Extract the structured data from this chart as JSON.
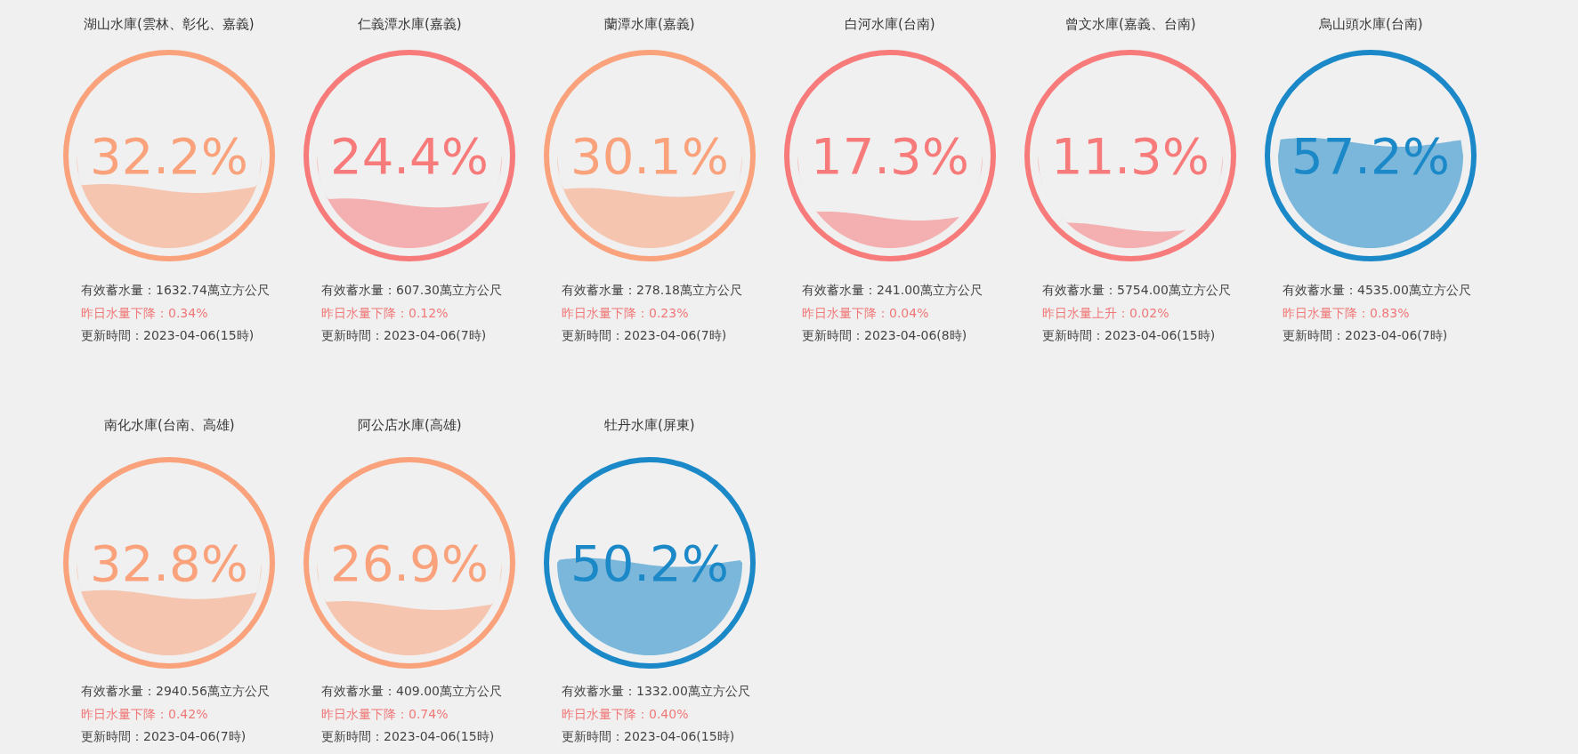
{
  "chart_data": [
    {
      "type": "other",
      "title": "湖山水庫(雲林、彰化、嘉義)",
      "values": [
        32.2
      ],
      "value_labels": [
        "32.2%"
      ],
      "color": "#f9a27c",
      "annotations": [
        "有效蓄水量：1632.74萬立方公尺",
        "昨日水量下降：0.34%",
        "更新時間：2023-04-06(15時)"
      ]
    },
    {
      "type": "other",
      "title": "仁義潭水庫(嘉義)",
      "values": [
        24.4
      ],
      "value_labels": [
        "24.4%"
      ],
      "color": "#f77b7b",
      "annotations": [
        "有效蓄水量：607.30萬立方公尺",
        "昨日水量下降：0.12%",
        "更新時間：2023-04-06(7時)"
      ]
    },
    {
      "type": "other",
      "title": "蘭潭水庫(嘉義)",
      "values": [
        30.1
      ],
      "value_labels": [
        "30.1%"
      ],
      "color": "#f9a27c",
      "annotations": [
        "有效蓄水量：278.18萬立方公尺",
        "昨日水量下降：0.23%",
        "更新時間：2023-04-06(7時)"
      ]
    },
    {
      "type": "other",
      "title": "白河水庫(台南)",
      "values": [
        17.3
      ],
      "value_labels": [
        "17.3%"
      ],
      "color": "#f77b7b",
      "annotations": [
        "有效蓄水量：241.00萬立方公尺",
        "昨日水量下降：0.04%",
        "更新時間：2023-04-06(8時)"
      ]
    },
    {
      "type": "other",
      "title": "曾文水庫(嘉義、台南)",
      "values": [
        11.3
      ],
      "value_labels": [
        "11.3%"
      ],
      "color": "#f77b7b",
      "annotations": [
        "有效蓄水量：5754.00萬立方公尺",
        "昨日水量上升：0.02%",
        "更新時間：2023-04-06(15時)"
      ]
    },
    {
      "type": "other",
      "title": "烏山頭水庫(台南)",
      "values": [
        57.2
      ],
      "value_labels": [
        "57.2%"
      ],
      "color": "#1b88c8",
      "annotations": [
        "有效蓄水量：4535.00萬立方公尺",
        "昨日水量下降：0.83%",
        "更新時間：2023-04-06(7時)"
      ]
    },
    {
      "type": "other",
      "title": "南化水庫(台南、高雄)",
      "values": [
        32.8
      ],
      "value_labels": [
        "32.8%"
      ],
      "color": "#f9a27c",
      "annotations": [
        "有效蓄水量：2940.56萬立方公尺",
        "昨日水量下降：0.42%",
        "更新時間：2023-04-06(7時)"
      ]
    },
    {
      "type": "other",
      "title": "阿公店水庫(高雄)",
      "values": [
        26.9
      ],
      "value_labels": [
        "26.9%"
      ],
      "color": "#f9a27c",
      "annotations": [
        "有效蓄水量：409.00萬立方公尺",
        "昨日水量下降：0.74%",
        "更新時間：2023-04-06(15時)"
      ]
    },
    {
      "type": "other",
      "title": "牡丹水庫(屏東)",
      "values": [
        50.2
      ],
      "value_labels": [
        "50.2%"
      ],
      "color": "#1b88c8",
      "annotations": [
        "有效蓄水量：1332.00萬立方公尺",
        "昨日水量下降：0.40%",
        "更新時間：2023-04-06(15時)"
      ]
    }
  ]
}
